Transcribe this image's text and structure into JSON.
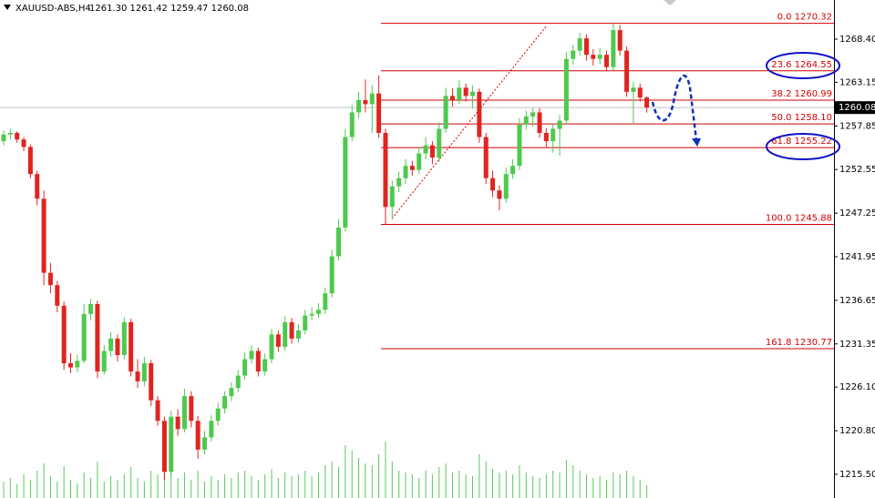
{
  "chart_data": {
    "type": "candlestick",
    "title": "XAUUSD-ABS,H4",
    "subtitle": "1261.30 1261.42 1259.47 1260.08",
    "open": [
      1256.0,
      1256.8,
      1257.0,
      1256.2,
      1255.3,
      1252.0,
      1249.0,
      1240.0,
      1238.5,
      1236.0,
      1229.0,
      1228.5,
      1229.3,
      1235.0,
      1236.2,
      1228.0,
      1230.5,
      1232.0,
      1230.0,
      1234.0,
      1228.0,
      1226.8,
      1229.0,
      1224.5,
      1222.0,
      1215.8,
      1222.5,
      1221.0,
      1225.0,
      1222.0,
      1218.5,
      1220.0,
      1222.0,
      1223.5,
      1225.0,
      1226.0,
      1227.5,
      1229.5,
      1230.5,
      1228.0,
      1229.5,
      1232.5,
      1231.0,
      1234.0,
      1232.0,
      1233.0,
      1234.8,
      1235.0,
      1235.5,
      1237.5,
      1242.0,
      1245.5,
      1256.5,
      1259.5,
      1261.0,
      1260.5,
      1261.8,
      1257.0,
      1248.0,
      1250.5,
      1251.5,
      1253.0,
      1252.5,
      1254.5,
      1255.5,
      1254.0,
      1257.5,
      1261.5,
      1261.0,
      1262.5,
      1261.5,
      1262.0,
      1256.5,
      1251.5,
      1250.0,
      1249.0,
      1252.0,
      1253.0,
      1258.0,
      1259.0,
      1259.5,
      1257.0,
      1256.0,
      1257.5,
      1258.5,
      1266.0,
      1267.0,
      1268.5,
      1266.5,
      1266.0,
      1266.5,
      1265.0,
      1269.5,
      1267.0,
      1262.0,
      1262.5,
      1261.3
    ],
    "high": [
      1257.3,
      1257.5,
      1257.2,
      1256.5,
      1255.6,
      1252.4,
      1250.0,
      1241.2,
      1239.0,
      1236.5,
      1230.2,
      1230.0,
      1236.2,
      1236.8,
      1236.6,
      1231.2,
      1232.8,
      1232.5,
      1234.6,
      1234.4,
      1229.5,
      1229.8,
      1229.4,
      1225.0,
      1222.5,
      1223.2,
      1223.4,
      1225.9,
      1225.6,
      1222.6,
      1220.8,
      1222.7,
      1224.2,
      1225.6,
      1226.7,
      1228.2,
      1230.3,
      1231.2,
      1230.9,
      1230.2,
      1233.2,
      1233.0,
      1234.7,
      1234.5,
      1233.8,
      1235.5,
      1235.8,
      1236.3,
      1238.2,
      1242.8,
      1246.5,
      1257.5,
      1260.4,
      1262.0,
      1263.5,
      1262.8,
      1264.0,
      1257.5,
      1251.2,
      1252.3,
      1253.8,
      1253.6,
      1255.3,
      1256.5,
      1256.0,
      1258.3,
      1262.5,
      1262.4,
      1263.4,
      1263.0,
      1262.8,
      1262.4,
      1257.0,
      1252.4,
      1250.6,
      1252.8,
      1253.8,
      1258.8,
      1259.7,
      1260.0,
      1260.0,
      1257.6,
      1258.1,
      1259.2,
      1266.8,
      1267.7,
      1269.2,
      1269.0,
      1267.2,
      1267.3,
      1267.0,
      1270.3,
      1270.1,
      1267.5,
      1263.2,
      1263.0,
      1261.42
    ],
    "low": [
      1255.5,
      1256.2,
      1255.8,
      1254.8,
      1251.5,
      1248.2,
      1238.5,
      1237.5,
      1235.2,
      1228.2,
      1227.8,
      1227.9,
      1229.0,
      1234.2,
      1227.2,
      1227.6,
      1229.8,
      1229.2,
      1229.5,
      1227.4,
      1226.0,
      1226.2,
      1223.8,
      1221.4,
      1214.8,
      1215.2,
      1220.2,
      1220.6,
      1221.2,
      1217.4,
      1217.9,
      1219.5,
      1221.4,
      1222.9,
      1224.4,
      1225.5,
      1227.0,
      1229.0,
      1227.4,
      1227.5,
      1229.0,
      1230.4,
      1230.5,
      1231.4,
      1231.5,
      1232.5,
      1234.2,
      1234.5,
      1235.0,
      1237.0,
      1241.5,
      1245.0,
      1256.0,
      1258.8,
      1259.5,
      1257.0,
      1256.4,
      1245.9,
      1246.5,
      1249.8,
      1250.8,
      1251.8,
      1252.0,
      1253.8,
      1253.2,
      1253.5,
      1257.0,
      1260.2,
      1260.5,
      1260.8,
      1260.0,
      1255.8,
      1250.8,
      1249.2,
      1247.6,
      1248.5,
      1251.4,
      1252.5,
      1257.4,
      1257.8,
      1256.4,
      1255.2,
      1254.6,
      1254.2,
      1258.0,
      1265.3,
      1266.4,
      1265.8,
      1265.2,
      1265.4,
      1264.5,
      1264.6,
      1266.4,
      1261.4,
      1258.0,
      1260.8,
      1259.47
    ],
    "close": [
      1256.8,
      1257.0,
      1256.2,
      1255.3,
      1252.0,
      1249.0,
      1240.0,
      1238.5,
      1236.0,
      1229.0,
      1228.5,
      1229.3,
      1235.0,
      1236.2,
      1228.0,
      1230.5,
      1232.0,
      1230.0,
      1234.0,
      1228.0,
      1226.8,
      1229.0,
      1224.5,
      1222.0,
      1215.8,
      1222.5,
      1221.0,
      1225.0,
      1222.0,
      1218.5,
      1220.0,
      1222.0,
      1223.5,
      1225.0,
      1226.0,
      1227.5,
      1229.5,
      1230.5,
      1228.0,
      1229.5,
      1232.5,
      1231.0,
      1234.0,
      1232.0,
      1233.0,
      1234.8,
      1235.0,
      1235.5,
      1237.5,
      1242.0,
      1245.5,
      1256.5,
      1259.5,
      1261.0,
      1260.5,
      1261.8,
      1257.0,
      1248.0,
      1250.5,
      1251.5,
      1253.0,
      1252.5,
      1254.5,
      1255.5,
      1254.0,
      1257.5,
      1261.5,
      1261.0,
      1262.5,
      1261.5,
      1262.0,
      1256.5,
      1251.5,
      1250.0,
      1249.0,
      1252.0,
      1253.0,
      1258.0,
      1259.0,
      1259.5,
      1257.0,
      1256.0,
      1257.5,
      1258.5,
      1266.0,
      1267.0,
      1268.5,
      1266.5,
      1266.0,
      1266.5,
      1265.0,
      1269.5,
      1267.0,
      1262.0,
      1262.5,
      1261.3,
      1260.08
    ],
    "volume": [
      18,
      22,
      15,
      26,
      20,
      30,
      38,
      24,
      18,
      35,
      20,
      16,
      28,
      22,
      40,
      18,
      24,
      20,
      26,
      34,
      22,
      18,
      30,
      26,
      42,
      38,
      22,
      28,
      20,
      30,
      18,
      24,
      20,
      26,
      22,
      28,
      30,
      24,
      20,
      26,
      32,
      22,
      28,
      24,
      26,
      30,
      24,
      28,
      36,
      40,
      34,
      58,
      52,
      44,
      38,
      36,
      48,
      62,
      40,
      30,
      28,
      26,
      22,
      30,
      26,
      34,
      38,
      28,
      30,
      26,
      24,
      48,
      40,
      32,
      28,
      30,
      26,
      36,
      28,
      24,
      22,
      26,
      30,
      28,
      42,
      36,
      30,
      26,
      22,
      24,
      20,
      28,
      26,
      30,
      24,
      20,
      14
    ],
    "bull_color": "#4ec94e",
    "bear_color": "#e02420",
    "volume_color": "#5ac85a",
    "ylim": [
      1212.62,
      1273.16
    ],
    "yticks": [
      {
        "value": 1268.4,
        "label": "1268.40"
      },
      1263.15,
      1257.85,
      1252.55,
      1247.25,
      1241.95,
      1236.65,
      1231.35,
      {
        "value": 1226.1,
        "label": "1226.10"
      },
      {
        "value": 1220.8,
        "label": "1220.80"
      },
      {
        "value": 1215.5,
        "label": "1215.50"
      }
    ],
    "fib_color": "#d40000",
    "fib_levels": [
      {
        "label": "0.0 1270.32",
        "value": 1270.32
      },
      {
        "label": "23.6 1264.55",
        "value": 1264.55
      },
      {
        "label": "38.2 1260.99",
        "value": 1260.99
      },
      {
        "label": "50.0 1258.10",
        "value": 1258.1
      },
      {
        "label": "61.8 1255.22",
        "value": 1255.22
      },
      {
        "label": "100.0 1245.88",
        "value": 1245.88
      },
      {
        "label": "161.8 1230.77",
        "value": 1230.77
      }
    ],
    "current_price": 1260.08
  }
}
